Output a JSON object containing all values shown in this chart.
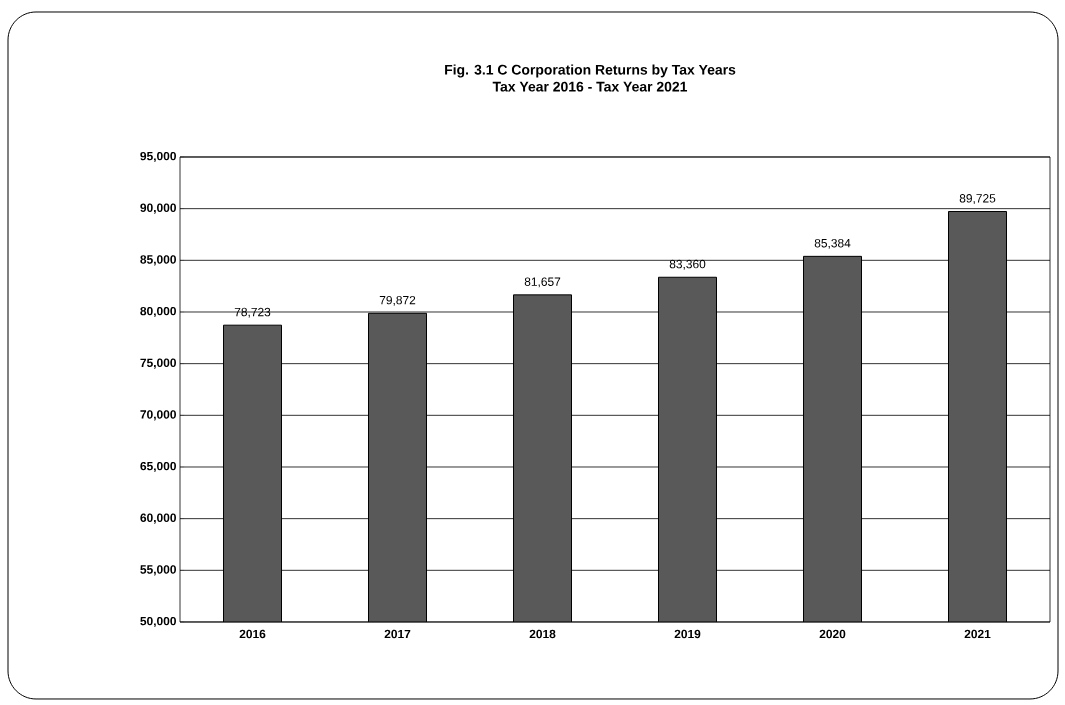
{
  "chart_data": {
    "type": "bar",
    "title": "Fig. 3.1  C Corporation Returns by Tax Years",
    "subtitle": "Tax Year 2016 - Tax Year 2021",
    "categories": [
      "2016",
      "2017",
      "2018",
      "2019",
      "2020",
      "2021"
    ],
    "values": [
      78723,
      79872,
      81657,
      83360,
      85384,
      89725
    ],
    "value_labels": [
      "78,723",
      "79,872",
      "81,657",
      "83,360",
      "85,384",
      "89,725"
    ],
    "color": "#595959",
    "ylim": [
      50000,
      95000
    ],
    "yticks": [
      {
        "value": 50000,
        "label": "50,000"
      },
      {
        "value": 55000,
        "label": "55,000"
      },
      {
        "value": 60000,
        "label": "60,000"
      },
      {
        "value": 65000,
        "label": "65,000"
      },
      {
        "value": 70000,
        "label": "70,000"
      },
      {
        "value": 75000,
        "label": "75,000"
      },
      {
        "value": 80000,
        "label": "80,000"
      },
      {
        "value": 85000,
        "label": "85,000"
      },
      {
        "value": 90000,
        "label": "90,000"
      },
      {
        "value": 95000,
        "label": "95,000"
      }
    ],
    "grid": "y"
  }
}
